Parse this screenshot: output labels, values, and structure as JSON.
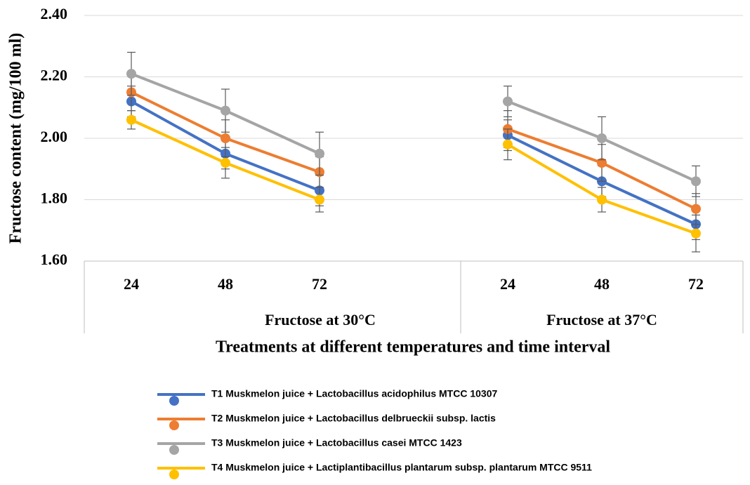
{
  "chart_data": {
    "type": "line",
    "y_label": "Fructose content (mg/100 ml)",
    "x_label": "Treatments at different temperatures and time interval",
    "groups": [
      {
        "name": "Fructose at 30°C",
        "size": 4
      },
      {
        "name": "Fructose at 37°C",
        "size": 3
      }
    ],
    "categories": [
      "24",
      "48",
      "72",
      null,
      "24",
      "48",
      "72"
    ],
    "ylim": [
      1.6,
      2.4
    ],
    "yticks": [
      {
        "value": 1.6,
        "label": "1.60"
      },
      {
        "value": 1.8,
        "label": "1.80"
      },
      {
        "value": 2.0,
        "label": "2.00"
      },
      {
        "value": 2.2,
        "label": "2.20"
      },
      {
        "value": 2.4,
        "label": "2.40"
      }
    ],
    "grid": true,
    "legend": "bottom",
    "series": [
      {
        "name": "T1 Muskmelon juice + Lactobacillus acidophilus MTCC 10307",
        "color": "#4472c4",
        "values": [
          2.12,
          1.95,
          1.83,
          null,
          2.01,
          1.86,
          1.72
        ],
        "errors": [
          0.05,
          0.05,
          0.05,
          null,
          0.05,
          0.05,
          0.05
        ]
      },
      {
        "name": "T2 Muskmelon juice + Lactobacillus delbrueckii subsp. lactis",
        "color": "#ed7d31",
        "values": [
          2.15,
          2.0,
          1.89,
          null,
          2.03,
          1.92,
          1.77
        ],
        "errors": [
          0.06,
          0.06,
          0.05,
          null,
          0.06,
          0.06,
          0.05
        ]
      },
      {
        "name": "T3 Muskmelon juice + Lactobacillus casei MTCC 1423",
        "color": "#a5a5a5",
        "values": [
          2.21,
          2.09,
          1.95,
          null,
          2.12,
          2.0,
          1.86
        ],
        "errors": [
          0.07,
          0.07,
          0.07,
          null,
          0.05,
          0.07,
          0.05
        ]
      },
      {
        "name": "T4 Muskmelon juice + Lactiplantibacillus plantarum subsp. plantarum MTCC 9511",
        "color": "#ffc000",
        "values": [
          2.06,
          1.92,
          1.8,
          null,
          1.98,
          1.8,
          1.69
        ],
        "errors": [
          0.03,
          0.05,
          0.04,
          null,
          0.05,
          0.04,
          0.06
        ]
      }
    ]
  }
}
